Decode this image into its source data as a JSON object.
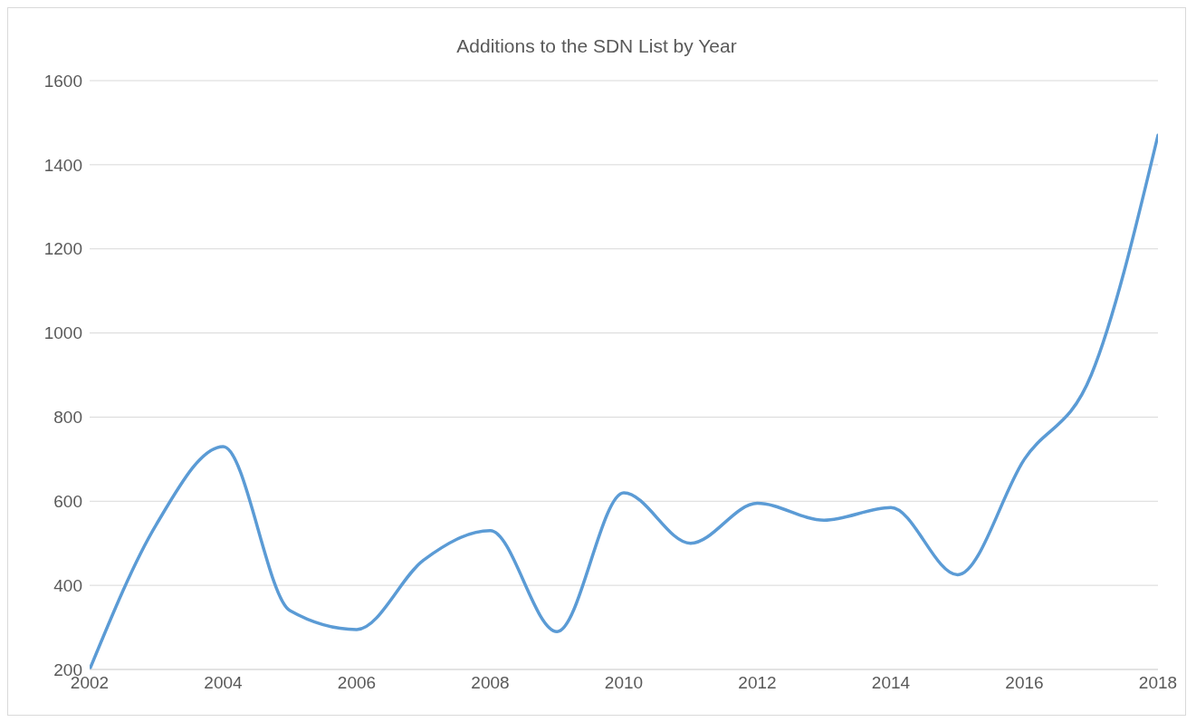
{
  "chart_data": {
    "type": "line",
    "title": "Additions to the SDN List by Year",
    "x": [
      2002,
      2003,
      2004,
      2005,
      2006,
      2007,
      2008,
      2009,
      2010,
      2011,
      2012,
      2013,
      2014,
      2015,
      2016,
      2017,
      2018
    ],
    "series": [
      {
        "color": "#5b9bd5",
        "values": [
          200,
          545,
          730,
          340,
          295,
          460,
          530,
          290,
          620,
          500,
          595,
          555,
          585,
          425,
          700,
          900,
          1470
        ]
      }
    ],
    "xlim": [
      2002,
      2018
    ],
    "xticks": [
      2002,
      2004,
      2006,
      2008,
      2010,
      2012,
      2014,
      2016,
      2018
    ],
    "ylim": [
      200,
      1600
    ],
    "yticks": [
      200,
      400,
      600,
      800,
      1000,
      1200,
      1400,
      1600
    ],
    "grid": "y",
    "legend": false,
    "marker": "none",
    "line_style": "solid"
  }
}
